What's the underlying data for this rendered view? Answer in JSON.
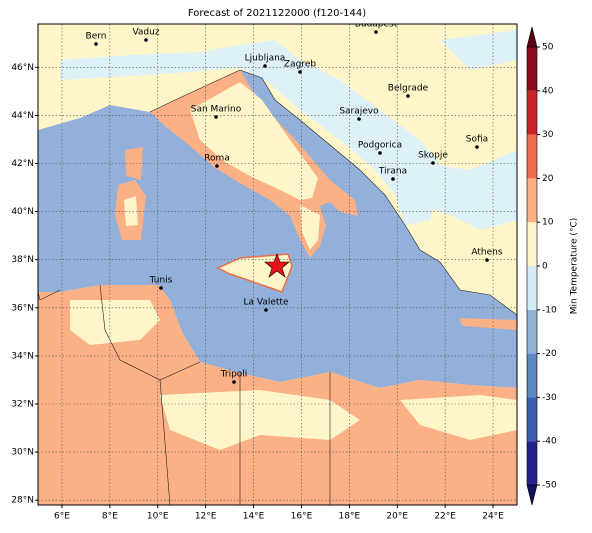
{
  "title": "Forecast of 2021122000 (f120-144)",
  "map": {
    "xlim": [
      5,
      25
    ],
    "ylim": [
      27.8,
      47.8
    ],
    "xticks": [
      {
        "value": 6,
        "label": "6°E"
      },
      {
        "value": 8,
        "label": "8°E"
      },
      {
        "value": 10,
        "label": "10°E"
      },
      {
        "value": 12,
        "label": "12°E"
      },
      {
        "value": 14,
        "label": "14°E"
      },
      {
        "value": 16,
        "label": "16°E"
      },
      {
        "value": 18,
        "label": "18°E"
      },
      {
        "value": 20,
        "label": "20°E"
      },
      {
        "value": 22,
        "label": "22°E"
      },
      {
        "value": 24,
        "label": "24°E"
      }
    ],
    "yticks": [
      {
        "value": 28,
        "label": "28°N"
      },
      {
        "value": 30,
        "label": "30°N"
      },
      {
        "value": 32,
        "label": "32°N"
      },
      {
        "value": 34,
        "label": "34°N"
      },
      {
        "value": 36,
        "label": "36°N"
      },
      {
        "value": 38,
        "label": "38°N"
      },
      {
        "value": 40,
        "label": "40°N"
      },
      {
        "value": 42,
        "label": "42°N"
      },
      {
        "value": 44,
        "label": "44°N"
      },
      {
        "value": 46,
        "label": "46°N"
      }
    ],
    "cities": [
      "Bern",
      "Vaduz",
      "Budapest",
      "Ljubljana",
      "Zagreb",
      "Belgrade",
      "San Marino",
      "Sarajevo",
      "Sofia",
      "Podgorica",
      "Skopje",
      "Roma",
      "Tirana",
      "Athens",
      "Tunis",
      "La Valette",
      "Tripoli"
    ]
  },
  "colorbar": {
    "label": "Min Temperature (°C)",
    "lim": [
      -50,
      50
    ],
    "ticks": [
      -50,
      -40,
      -30,
      -20,
      -10,
      0,
      10,
      20,
      30,
      40,
      50
    ],
    "colors": [
      "#23238e",
      "#3a5fb0",
      "#5b8ac0",
      "#8fb2d6",
      "#d6ecf5",
      "#fef6c8",
      "#fcb085",
      "#ec6d4a",
      "#c8252a",
      "#8c0d1e"
    ],
    "under": "#12125c",
    "over": "#5e0010"
  }
}
